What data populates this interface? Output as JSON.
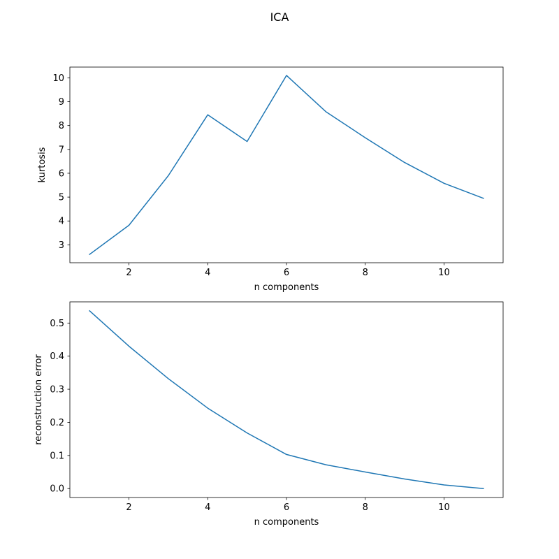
{
  "figure": {
    "title": "ICA"
  },
  "chart_data": [
    {
      "type": "line",
      "xlabel": "n components",
      "ylabel": "kurtosis",
      "xlim": [
        0.5,
        11.5
      ],
      "ylim": [
        2.25,
        10.45
      ],
      "xticks": [
        2,
        4,
        6,
        8,
        10
      ],
      "yticks": [
        3,
        4,
        5,
        6,
        7,
        8,
        9,
        10
      ],
      "grid": false,
      "series": [
        {
          "color": "#1f77b4",
          "x": [
            1,
            2,
            3,
            4,
            5,
            6,
            7,
            8,
            9,
            10,
            11
          ],
          "y": [
            2.6,
            3.82,
            5.9,
            8.45,
            7.33,
            10.1,
            8.58,
            7.49,
            6.45,
            5.58,
            4.95
          ]
        }
      ]
    },
    {
      "type": "line",
      "xlabel": "n components",
      "ylabel": "reconstruction error",
      "xlim": [
        0.5,
        11.5
      ],
      "ylim": [
        -0.027,
        0.564
      ],
      "xticks": [
        2,
        4,
        6,
        8,
        10
      ],
      "yticks": [
        0.0,
        0.1,
        0.2,
        0.3,
        0.4,
        0.5
      ],
      "ytick_format": 1,
      "grid": false,
      "series": [
        {
          "color": "#1f77b4",
          "x": [
            1,
            2,
            3,
            4,
            5,
            6,
            7,
            8,
            9,
            10,
            11
          ],
          "y": [
            0.537,
            0.43,
            0.332,
            0.243,
            0.168,
            0.103,
            0.072,
            0.05,
            0.029,
            0.011,
            0.0
          ]
        }
      ]
    }
  ]
}
